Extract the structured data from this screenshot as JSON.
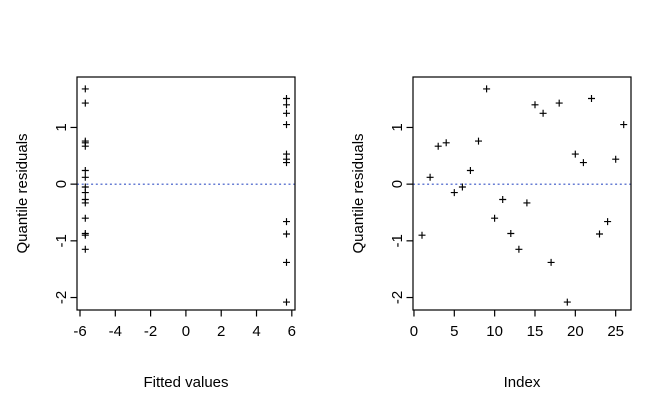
{
  "figure": {
    "background_color": "#ffffff",
    "axis_color": "#000000",
    "point_color": "#000000",
    "ref_line_color": "#3653C5"
  },
  "chart_data": [
    {
      "id": "fitted-vs-residuals",
      "type": "scatter",
      "marker": "plus",
      "title": "",
      "xlabel": "Fitted values",
      "ylabel": "Quantile residuals",
      "x_tick_labels": [
        "-6",
        "-4",
        "-2",
        "0",
        "2",
        "4",
        "6"
      ],
      "x_ticks": [
        -6,
        -4,
        -2,
        0,
        2,
        4,
        6
      ],
      "y_tick_labels": [
        "-2",
        "-1",
        "0",
        "1"
      ],
      "y_ticks": [
        -2,
        -1,
        0,
        1
      ],
      "xlim": [
        -6.17,
        6.18
      ],
      "ylim": [
        -2.22,
        1.89
      ],
      "grid": false,
      "ref_line_y": 0,
      "x": [
        -5.7,
        -5.7,
        -5.7,
        -5.7,
        -5.7,
        -5.7,
        -5.7,
        -5.7,
        -5.7,
        -5.7,
        -5.7,
        -5.7,
        -5.7,
        -5.7,
        5.7,
        5.7,
        5.7,
        -5.7,
        5.7,
        5.7,
        5.7,
        5.7,
        5.7,
        5.7,
        5.7,
        5.7
      ],
      "y": [
        -0.9,
        0.12,
        0.67,
        0.73,
        -0.15,
        -0.05,
        0.24,
        0.76,
        1.68,
        -0.6,
        -0.27,
        -0.87,
        -1.15,
        -0.33,
        1.4,
        1.25,
        -1.38,
        1.43,
        -2.08,
        0.53,
        0.38,
        1.51,
        -0.88,
        -0.66,
        0.44,
        1.05
      ]
    },
    {
      "id": "index-vs-residuals",
      "type": "scatter",
      "marker": "plus",
      "title": "",
      "xlabel": "Index",
      "ylabel": "Quantile residuals",
      "x_tick_labels": [
        "0",
        "5",
        "10",
        "15",
        "20",
        "25"
      ],
      "x_ticks": [
        0,
        5,
        10,
        15,
        20,
        25
      ],
      "y_tick_labels": [
        "-2",
        "-1",
        "0",
        "1"
      ],
      "y_ticks": [
        -2,
        -1,
        0,
        1
      ],
      "xlim": [
        -0.12,
        26.9
      ],
      "ylim": [
        -2.22,
        1.89
      ],
      "grid": false,
      "ref_line_y": 0,
      "x": [
        1,
        2,
        3,
        4,
        5,
        6,
        7,
        8,
        9,
        10,
        11,
        12,
        13,
        14,
        15,
        16,
        17,
        18,
        19,
        20,
        21,
        22,
        23,
        24,
        25,
        26
      ],
      "y": [
        -0.9,
        0.12,
        0.67,
        0.73,
        -0.15,
        -0.05,
        0.24,
        0.76,
        1.68,
        -0.6,
        -0.27,
        -0.87,
        -1.15,
        -0.33,
        1.4,
        1.25,
        -1.38,
        1.43,
        -2.08,
        0.53,
        0.38,
        1.51,
        -0.88,
        -0.66,
        0.44,
        1.05
      ]
    }
  ]
}
